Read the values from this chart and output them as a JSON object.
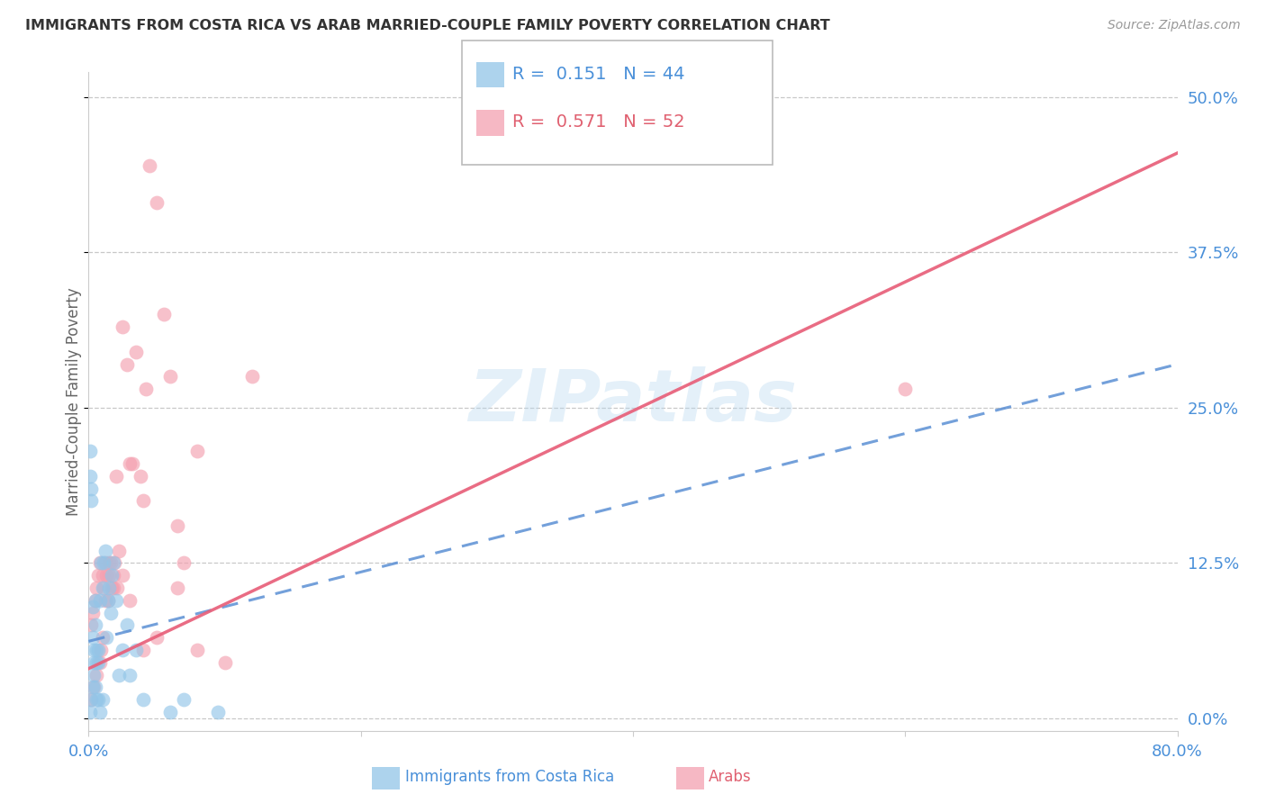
{
  "title": "IMMIGRANTS FROM COSTA RICA VS ARAB MARRIED-COUPLE FAMILY POVERTY CORRELATION CHART",
  "source": "Source: ZipAtlas.com",
  "ylabel_label": "Married-Couple Family Poverty",
  "legend1_r": "0.151",
  "legend1_n": "44",
  "legend2_r": "0.571",
  "legend2_n": "52",
  "legend1_label": "Immigrants from Costa Rica",
  "legend2_label": "Arabs",
  "blue_color": "#92c5e8",
  "pink_color": "#f4a0b0",
  "blue_line_color": "#5b8fd4",
  "pink_line_color": "#e8607a",
  "watermark": "ZIPatlas",
  "blue_scatter_x": [
    0.001,
    0.001,
    0.002,
    0.002,
    0.003,
    0.003,
    0.004,
    0.004,
    0.005,
    0.005,
    0.006,
    0.006,
    0.007,
    0.007,
    0.008,
    0.009,
    0.01,
    0.011,
    0.012,
    0.013,
    0.014,
    0.015,
    0.016,
    0.017,
    0.018,
    0.02,
    0.022,
    0.025,
    0.028,
    0.03,
    0.035,
    0.04,
    0.06,
    0.07,
    0.095,
    0.001,
    0.002,
    0.003,
    0.004,
    0.005,
    0.006,
    0.007,
    0.008,
    0.01
  ],
  "blue_scatter_y": [
    0.215,
    0.195,
    0.185,
    0.175,
    0.09,
    0.065,
    0.055,
    0.045,
    0.095,
    0.075,
    0.055,
    0.045,
    0.055,
    0.045,
    0.095,
    0.125,
    0.105,
    0.125,
    0.135,
    0.065,
    0.095,
    0.105,
    0.085,
    0.115,
    0.125,
    0.095,
    0.035,
    0.055,
    0.075,
    0.035,
    0.055,
    0.015,
    0.005,
    0.015,
    0.005,
    0.005,
    0.015,
    0.025,
    0.035,
    0.025,
    0.015,
    0.015,
    0.005,
    0.015
  ],
  "pink_scatter_x": [
    0.002,
    0.003,
    0.005,
    0.006,
    0.007,
    0.008,
    0.009,
    0.01,
    0.011,
    0.012,
    0.013,
    0.014,
    0.015,
    0.016,
    0.017,
    0.018,
    0.019,
    0.02,
    0.022,
    0.025,
    0.028,
    0.03,
    0.032,
    0.035,
    0.038,
    0.04,
    0.042,
    0.045,
    0.05,
    0.055,
    0.06,
    0.065,
    0.07,
    0.08,
    0.12,
    0.6,
    0.002,
    0.004,
    0.006,
    0.008,
    0.01,
    0.012,
    0.015,
    0.018,
    0.021,
    0.025,
    0.03,
    0.04,
    0.05,
    0.065,
    0.08,
    0.1
  ],
  "pink_scatter_y": [
    0.075,
    0.085,
    0.095,
    0.105,
    0.115,
    0.125,
    0.055,
    0.065,
    0.105,
    0.125,
    0.115,
    0.095,
    0.125,
    0.125,
    0.105,
    0.115,
    0.125,
    0.195,
    0.135,
    0.315,
    0.285,
    0.205,
    0.205,
    0.295,
    0.195,
    0.175,
    0.265,
    0.445,
    0.415,
    0.325,
    0.275,
    0.155,
    0.125,
    0.215,
    0.275,
    0.265,
    0.015,
    0.025,
    0.035,
    0.045,
    0.115,
    0.095,
    0.115,
    0.105,
    0.105,
    0.115,
    0.095,
    0.055,
    0.065,
    0.105,
    0.055,
    0.045
  ],
  "xmin": 0.0,
  "xmax": 0.8,
  "ymin": -0.01,
  "ymax": 0.52,
  "y_ticks": [
    0.0,
    0.125,
    0.25,
    0.375,
    0.5
  ],
  "y_tick_labels": [
    "0.0%",
    "12.5%",
    "25.0%",
    "37.5%",
    "50.0%"
  ],
  "x_ticks": [
    0.0,
    0.2,
    0.4,
    0.6,
    0.8
  ],
  "x_tick_labels": [
    "0.0%",
    "",
    "",
    "",
    "80.0%"
  ],
  "blue_line_x0": 0.0,
  "blue_line_x1": 0.8,
  "blue_line_y0": 0.062,
  "blue_line_y1": 0.285,
  "pink_line_x0": 0.0,
  "pink_line_x1": 0.8,
  "pink_line_y0": 0.04,
  "pink_line_y1": 0.455
}
